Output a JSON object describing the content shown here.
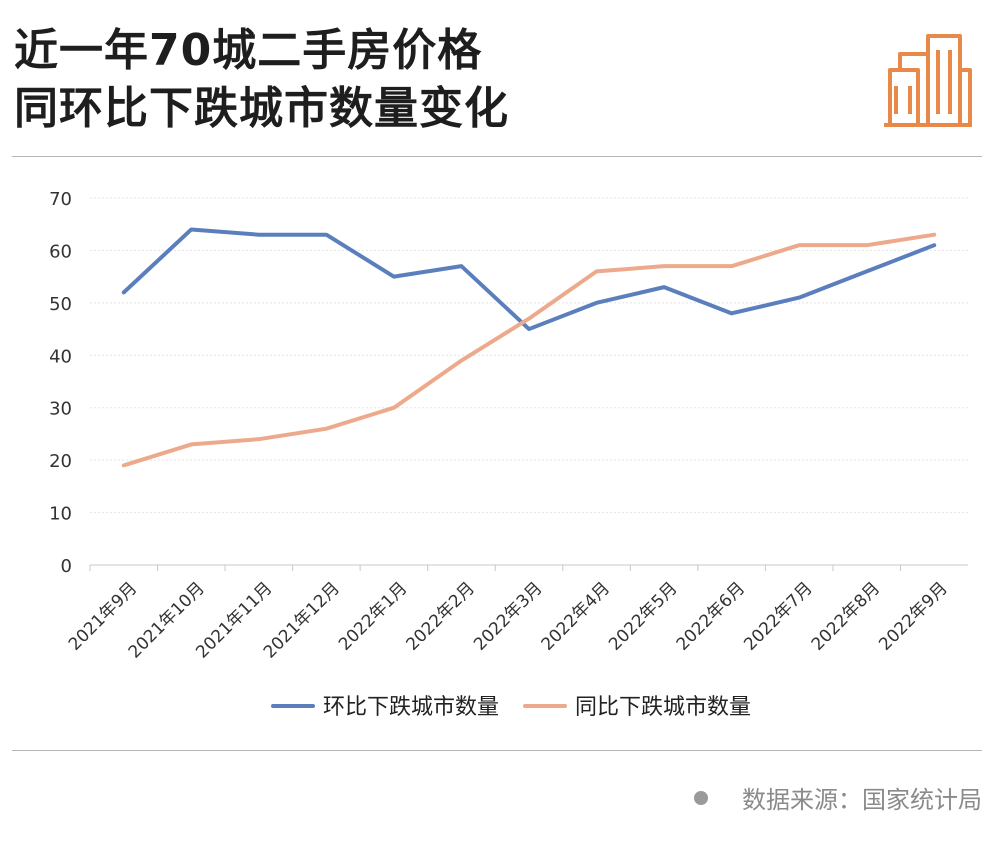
{
  "header": {
    "title_line1": "近一年70城二手房价格",
    "title_line2": "同环比下跌城市数量变化",
    "icon": "buildings-icon"
  },
  "footer": {
    "source_text": "数据来源：国家统计局"
  },
  "colors": {
    "mom": "#5b7fbd",
    "yoy": "#eda98b",
    "icon": "#e8894a"
  },
  "chart_data": {
    "type": "line",
    "categories": [
      "2021年9月",
      "2021年10月",
      "2021年11月",
      "2021年12月",
      "2022年1月",
      "2022年2月",
      "2022年3月",
      "2022年4月",
      "2022年5月",
      "2022年6月",
      "2022年7月",
      "2022年8月",
      "2022年9月"
    ],
    "series": [
      {
        "name": "环比下跌城市数量",
        "color": "#5b7fbd",
        "values": [
          52,
          64,
          63,
          63,
          55,
          57,
          45,
          50,
          53,
          48,
          51,
          56,
          61
        ]
      },
      {
        "name": "同比下跌城市数量",
        "color": "#eda98b",
        "values": [
          19,
          23,
          24,
          26,
          30,
          39,
          47,
          56,
          57,
          57,
          61,
          61,
          63
        ]
      }
    ],
    "ylim": [
      0,
      70
    ],
    "yticks": [
      0,
      10,
      20,
      30,
      40,
      50,
      60,
      70
    ],
    "grid": true,
    "legend": "bottom"
  }
}
